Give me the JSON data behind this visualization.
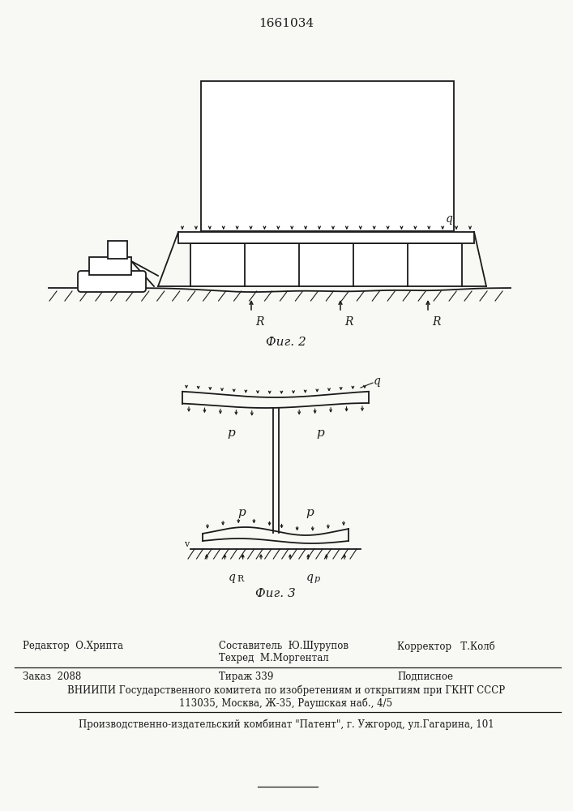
{
  "title": "1661034",
  "title_fontsize": 11,
  "bg_color": "#f8f8f4",
  "line_color": "#1a1a1a",
  "footer_line1_left": "Редактор  О.Хрипта",
  "footer_line1_center": "Составитель  Ю.Шурупов",
  "footer_line1_right": "Корректор   Т.Колб",
  "footer_line2_center": "Техред  М.Моргентал",
  "footer_line3_left": "Заказ  2088",
  "footer_line3_center": "Тираж 339",
  "footer_line3_right": "Подписное",
  "footer_line4": "ВНИИПИ Государственного комитета по изобретениям и открытиям при ГКНТ СССР",
  "footer_line5": "113035, Москва, Ж-35, Раушская наб., 4/5",
  "footer_bottom": "Производственно-издательский комбинат \"Патент\", г. Ужгород, ул.Гагарина, 101"
}
